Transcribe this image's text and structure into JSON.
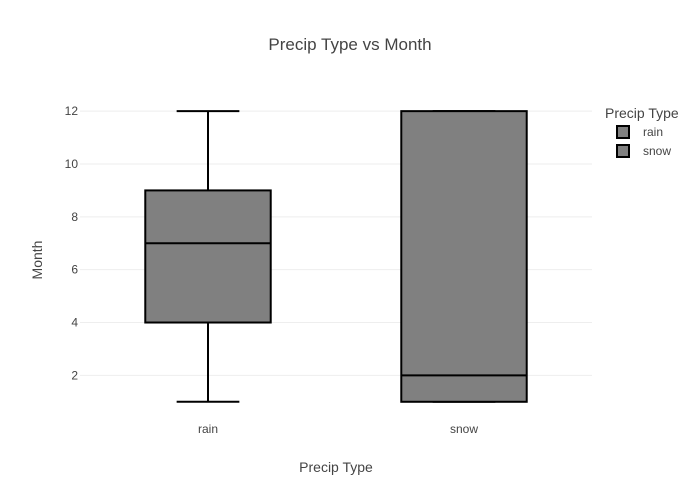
{
  "chart_data": {
    "type": "box",
    "title": "Precip Type vs Month",
    "xlabel": "Precip Type",
    "ylabel": "Month",
    "categories": [
      "rain",
      "snow"
    ],
    "yticks": [
      2,
      4,
      6,
      8,
      10,
      12
    ],
    "ylim": [
      0.5,
      12.8
    ],
    "grid": true,
    "legend": {
      "title": "Precip Type",
      "placement": "top-right",
      "entries": [
        "rain",
        "snow"
      ]
    },
    "series": [
      {
        "name": "rain",
        "min": 1,
        "q1": 4,
        "median": 7,
        "q3": 9,
        "max": 12
      },
      {
        "name": "snow",
        "min": 1,
        "q1": 1,
        "median": 2,
        "q3": 12,
        "max": 12
      }
    ],
    "colors": {
      "fill": "#808080",
      "stroke": "#000000",
      "grid": "#eeeeee"
    }
  }
}
